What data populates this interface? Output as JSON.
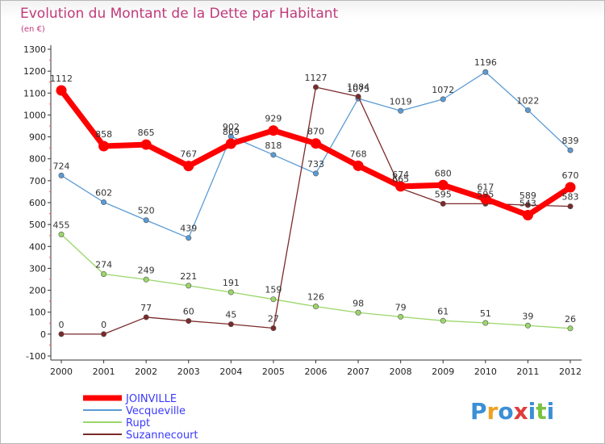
{
  "chart_data": {
    "type": "line",
    "title": "Evolution du Montant de la Dette par Habitant",
    "subtitle": "(en €)",
    "x": [
      "2000",
      "2001",
      "2002",
      "2003",
      "2004",
      "2005",
      "2006",
      "2007",
      "2008",
      "2009",
      "2010",
      "2011",
      "2012"
    ],
    "ylim": [
      -100,
      1300
    ],
    "yticks": [
      -100,
      0,
      100,
      200,
      300,
      400,
      500,
      600,
      700,
      800,
      900,
      1000,
      1100,
      1200,
      1300
    ],
    "grid": false,
    "legend_position": "bottom-left",
    "series": [
      {
        "name": "Vecqueville",
        "color": "#5b9bd5",
        "values": [
          724,
          602,
          520,
          439,
          902,
          818,
          733,
          1075,
          1019,
          1072,
          1196,
          1022,
          839
        ],
        "labels": [
          "724",
          "602",
          "520",
          "439",
          "902",
          "818",
          "733",
          "1075",
          "1019",
          "1072",
          "1196",
          "1022",
          "839"
        ]
      },
      {
        "name": "Rupt",
        "color": "#9bd66a",
        "values": [
          455,
          274,
          249,
          221,
          191,
          159,
          126,
          98,
          79,
          61,
          51,
          39,
          26
        ],
        "labels": [
          "455",
          "274",
          "249",
          "221",
          "191",
          "159",
          "126",
          "98",
          "79",
          "61",
          "51",
          "39",
          "26"
        ]
      },
      {
        "name": "Suzannecourt",
        "color": "#7b2a2a",
        "values": [
          0,
          0,
          77,
          60,
          45,
          27,
          1127,
          1084,
          665,
          595,
          595,
          589,
          583
        ],
        "labels": [
          "0",
          "0",
          "77",
          "60",
          "45",
          "27",
          "1127",
          "1084",
          "665",
          "595",
          "595",
          "589",
          "583"
        ]
      },
      {
        "name": "JOINVILLE",
        "color": "#ff0000",
        "emphasis": true,
        "values": [
          1112,
          858,
          865,
          767,
          869,
          929,
          870,
          768,
          674,
          680,
          617,
          543,
          670
        ],
        "labels": [
          "1112",
          "858",
          "865",
          "767",
          "869",
          "929",
          "870",
          "768",
          "674",
          "680",
          "617",
          "543",
          "670"
        ]
      }
    ]
  },
  "legend_order": [
    "JOINVILLE",
    "Vecqueville",
    "Rupt",
    "Suzannecourt"
  ],
  "logo": {
    "letters": [
      "P",
      "r",
      "o",
      "x",
      "i",
      "t",
      "i"
    ],
    "colors": [
      "#3b8fd6",
      "#f0a020",
      "#3b8fd6",
      "#e03c3c",
      "#3b8fd6",
      "#7cc242",
      "#3b8fd6"
    ]
  }
}
